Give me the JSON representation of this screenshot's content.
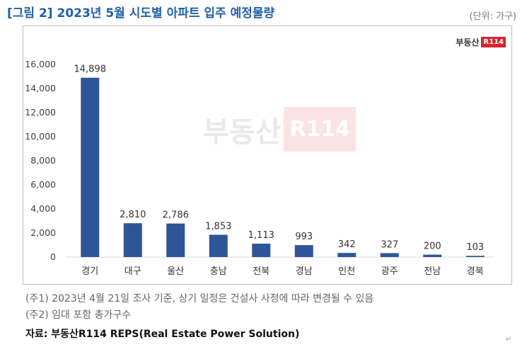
{
  "title": "[그림 2] 2023년 5월 시도별 아파트 입주 예정물량",
  "unit": "(단위: 가구)",
  "logo": {
    "text": "부동산",
    "badge": "R114"
  },
  "notes": [
    "(주1) 2023년 4월 21일 조사 기준, 상기 일정은 건설사 사정에 따라 변경될 수 있음",
    "(주2) 임대 포함 총가구수"
  ],
  "source": "자료: 부동산R114 REPS(Real Estate Power Solution)",
  "colors": {
    "bar": "#2e5597",
    "title": "#1f5fa8",
    "brand": "#d9232e"
  },
  "chart_data": {
    "type": "bar",
    "categories": [
      "경기",
      "대구",
      "울산",
      "충남",
      "전북",
      "경남",
      "인천",
      "광주",
      "전남",
      "경북"
    ],
    "values": [
      14898,
      2810,
      2786,
      1853,
      1113,
      993,
      342,
      327,
      200,
      103
    ],
    "data_labels": [
      "14,898",
      "2,810",
      "2,786",
      "1,853",
      "1,113",
      "993",
      "342",
      "327",
      "200",
      "103"
    ],
    "yticks": [
      "0",
      "2,000",
      "4,000",
      "6,000",
      "8,000",
      "10,000",
      "12,000",
      "14,000",
      "16,000"
    ],
    "ylim": [
      0,
      16000
    ],
    "grid": false,
    "legend": "none"
  }
}
